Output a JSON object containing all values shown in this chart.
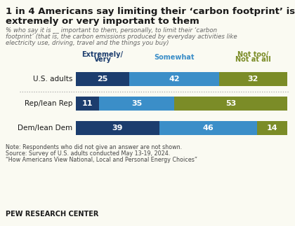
{
  "title_line1": "1 in 4 Americans say limiting their ‘carbon footprint’ is",
  "title_line2": "extremely or very important to them",
  "subtitle": "% who say it is __ important to them, personally, to limit their ‘carbon\nfootprint’ (that is, the carbon emissions produced by everyday activities like\nelectricity use, driving, travel and the things you buy)",
  "categories": [
    "U.S. adults",
    "Rep/lean Rep",
    "Dem/lean Dem"
  ],
  "extremely_very": [
    25,
    11,
    39
  ],
  "somewhat": [
    42,
    35,
    46
  ],
  "not_too_not_at_all": [
    32,
    53,
    14
  ],
  "color_extremely": "#1c3d6e",
  "color_somewhat": "#3b8ec8",
  "color_not_too": "#7b8c27",
  "col_header_extremely": "Extremely/\nVery",
  "col_header_somewhat": "Somewhat",
  "col_header_not_too": "Not too/\nNot at all",
  "note_line1": "Note: Respondents who did not give an answer are not shown.",
  "note_line2": "Source: Survey of U.S. adults conducted May 13-19, 2024.",
  "note_line3": "“How Americans View National, Local and Personal Energy Choices”",
  "footer": "PEW RESEARCH CENTER",
  "background_color": "#fafaf2"
}
